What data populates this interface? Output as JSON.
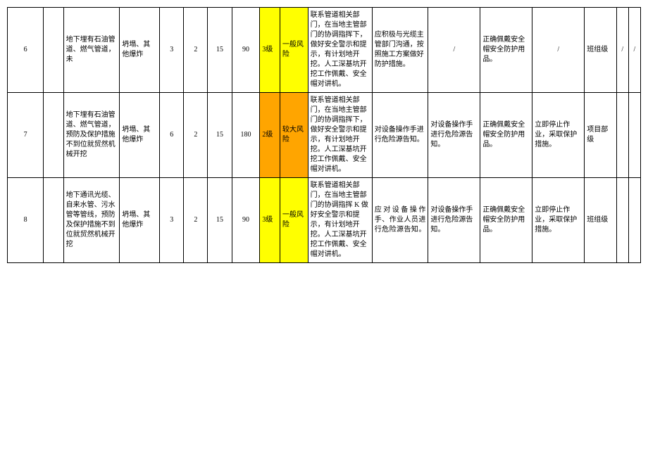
{
  "colors": {
    "yellow": "#ffff00",
    "orange": "#ffa500",
    "border": "#000000",
    "bg": "#ffffff"
  },
  "rows": [
    {
      "idx": "6",
      "desc": "地下埋有石油管道、燃气管道，未",
      "cause": "坍塌、其他爆炸",
      "n1": "3",
      "n2": "2",
      "n3": "15",
      "n4": "90",
      "level": "3级",
      "risk": "一般风险",
      "riskColorClass": "yellow",
      "measure": "联系管道相关部门，在当地主管部门的协调指挥下，做好安全警示和提示，有计划地开挖。人工深基坑开挖工作佩戴、安全帽对讲机。",
      "m1": "应积极与光缆主管部门沟通，按照施工方案做好防护措施。",
      "m2": "/",
      "m3": "正确佩戴安全帽安全防护用品。",
      "m4": "/",
      "m5": "班组级",
      "t1": "/",
      "t2": "/"
    },
    {
      "idx": "7",
      "desc": "地下埋有石油管道、燃气管道，预防及保护措施不到位就贸然机械开挖",
      "cause": "坍塌、其他爆炸",
      "n1": "6",
      "n2": "2",
      "n3": "15",
      "n4": "180",
      "level": "2级",
      "risk": "较大风险",
      "riskColorClass": "orange",
      "measure": "联系管道相关部门，在当地主管部门的协调指挥下，做好安全警示和提示，有计划地开挖。人工深基坑开挖工作佩戴、安全帽对讲机。",
      "m1": "对设备操作手进行危险源告知。",
      "m2": "对设备操作手进行危险源告知。",
      "m3": "正确佩戴安全帽安全防护用品。",
      "m4": "立即停止作业，采取保护措施。",
      "m5": "项目部级",
      "t1": "",
      "t2": ""
    },
    {
      "idx": "8",
      "desc": "地下通讯光缆、自来水管、污水管等管线，预防及保护措施不到位就贸然机械开挖",
      "cause": "坍塌、其他爆炸",
      "n1": "3",
      "n2": "2",
      "n3": "15",
      "n4": "90",
      "level": "3级",
      "risk": "一般风险",
      "riskColorClass": "yellow",
      "measure": "联系管道相关部门，在当地主管部门的协调指挥 K 做好安全警示和提示，有计划地开挖。人工深基坑开挖工作佩戴、安全帽对讲机。",
      "m1": "应对设备操作手、作业人员进行危险源告知。",
      "m2": "对设备操作手进行危险源告知。",
      "m3": "正确佩戴安全帽安全防护用品。",
      "m4": "立即停止作业，采取保护措施。",
      "m5": "班组级",
      "t1": "",
      "t2": ""
    }
  ]
}
